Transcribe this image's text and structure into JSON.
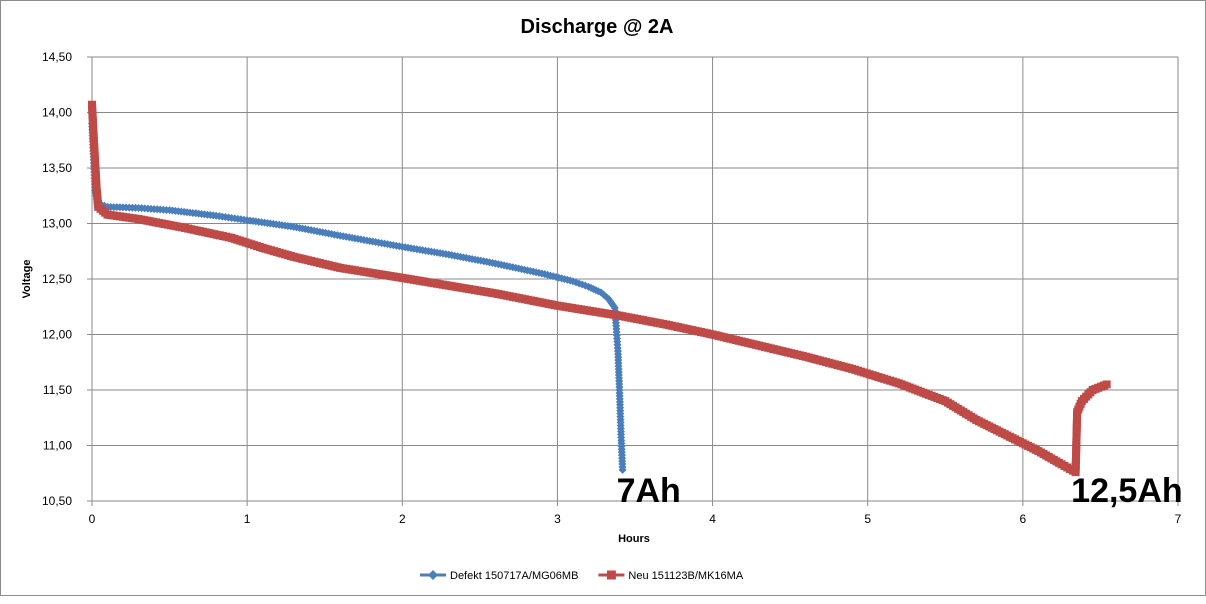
{
  "chart_data": {
    "type": "line",
    "title": "Discharge @ 2A",
    "xlabel": "Hours",
    "ylabel": "Voltage",
    "xlim": [
      0,
      7
    ],
    "ylim": [
      10.5,
      14.5
    ],
    "x_ticks": [
      "0",
      "1",
      "2",
      "3",
      "4",
      "5",
      "6",
      "7"
    ],
    "y_ticks": [
      "10,50",
      "11,00",
      "11,50",
      "12,00",
      "12,50",
      "13,00",
      "13,50",
      "14,00",
      "14,50"
    ],
    "grid": true,
    "legend_position": "bottom",
    "series": [
      {
        "name": "Defekt 150717A/MG06MB",
        "color": "#4a7ebb",
        "marker": "diamond",
        "points": [
          [
            0.0,
            13.9
          ],
          [
            0.01,
            13.6
          ],
          [
            0.02,
            13.3
          ],
          [
            0.04,
            13.18
          ],
          [
            0.1,
            13.15
          ],
          [
            0.3,
            13.14
          ],
          [
            0.5,
            13.12
          ],
          [
            0.8,
            13.07
          ],
          [
            1.0,
            13.03
          ],
          [
            1.3,
            12.97
          ],
          [
            1.6,
            12.89
          ],
          [
            2.0,
            12.79
          ],
          [
            2.3,
            12.72
          ],
          [
            2.6,
            12.64
          ],
          [
            2.9,
            12.55
          ],
          [
            3.1,
            12.48
          ],
          [
            3.2,
            12.43
          ],
          [
            3.28,
            12.38
          ],
          [
            3.33,
            12.32
          ],
          [
            3.37,
            12.24
          ],
          [
            3.38,
            12.05
          ],
          [
            3.39,
            11.85
          ],
          [
            3.4,
            11.5
          ],
          [
            3.41,
            11.1
          ],
          [
            3.42,
            10.78
          ]
        ]
      },
      {
        "name": "Neu 151123B/MK16MA",
        "color": "#be4b48",
        "marker": "square",
        "points": [
          [
            0.0,
            14.07
          ],
          [
            0.01,
            13.8
          ],
          [
            0.02,
            13.55
          ],
          [
            0.03,
            13.3
          ],
          [
            0.04,
            13.15
          ],
          [
            0.1,
            13.08
          ],
          [
            0.3,
            13.04
          ],
          [
            0.6,
            12.96
          ],
          [
            0.9,
            12.87
          ],
          [
            1.1,
            12.78
          ],
          [
            1.3,
            12.7
          ],
          [
            1.6,
            12.6
          ],
          [
            2.0,
            12.51
          ],
          [
            2.3,
            12.44
          ],
          [
            2.6,
            12.37
          ],
          [
            3.0,
            12.26
          ],
          [
            3.4,
            12.17
          ],
          [
            3.7,
            12.09
          ],
          [
            4.0,
            12.0
          ],
          [
            4.3,
            11.9
          ],
          [
            4.6,
            11.8
          ],
          [
            4.9,
            11.69
          ],
          [
            5.2,
            11.56
          ],
          [
            5.5,
            11.4
          ],
          [
            5.7,
            11.23
          ],
          [
            5.9,
            11.09
          ],
          [
            6.1,
            10.95
          ],
          [
            6.25,
            10.83
          ],
          [
            6.34,
            10.76
          ],
          [
            6.35,
            11.3
          ],
          [
            6.38,
            11.4
          ],
          [
            6.45,
            11.5
          ],
          [
            6.54,
            11.55
          ]
        ]
      }
    ],
    "annotations": [
      {
        "text": "7Ah",
        "x": 3.42,
        "y": 10.58
      },
      {
        "text": "12,5Ah",
        "x": 6.35,
        "y": 10.58
      }
    ]
  }
}
